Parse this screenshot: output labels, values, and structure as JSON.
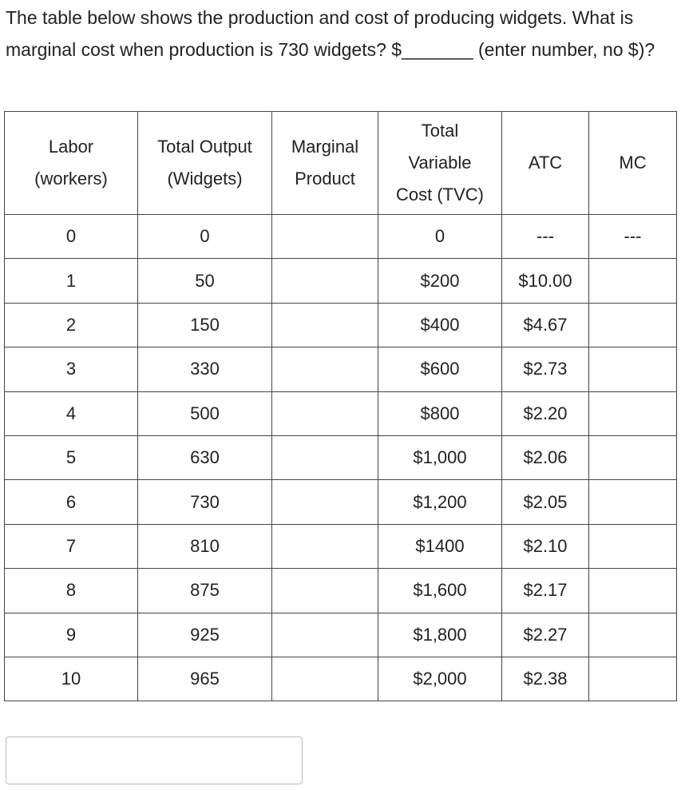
{
  "question": "The table below shows the production and cost of producing widgets. What is marginal cost when production is 730 widgets? $_______ (enter number, no $)?",
  "table": {
    "headers": [
      "Labor\n(workers)",
      "Total Output\n(Widgets)",
      "Marginal\nProduct",
      "Total\nVariable\nCost (TVC)",
      "ATC",
      "MC"
    ],
    "rows": [
      [
        "0",
        "0",
        "",
        "0",
        "---",
        "---"
      ],
      [
        "1",
        "50",
        "",
        "$200",
        "$10.00",
        ""
      ],
      [
        "2",
        "150",
        "",
        "$400",
        "$4.67",
        ""
      ],
      [
        "3",
        "330",
        "",
        "$600",
        "$2.73",
        ""
      ],
      [
        "4",
        "500",
        "",
        "$800",
        "$2.20",
        ""
      ],
      [
        "5",
        "630",
        "",
        "$1,000",
        "$2.06",
        ""
      ],
      [
        "6",
        "730",
        "",
        "$1,200",
        "$2.05",
        ""
      ],
      [
        "7",
        "810",
        "",
        "$1400",
        "$2.10",
        ""
      ],
      [
        "8",
        "875",
        "",
        "$1,600",
        "$2.17",
        ""
      ],
      [
        "9",
        "925",
        "",
        "$1,800",
        "$2.27",
        ""
      ],
      [
        "10",
        "965",
        "",
        "$2,000",
        "$2.38",
        ""
      ]
    ]
  },
  "answer": {
    "value": ""
  }
}
